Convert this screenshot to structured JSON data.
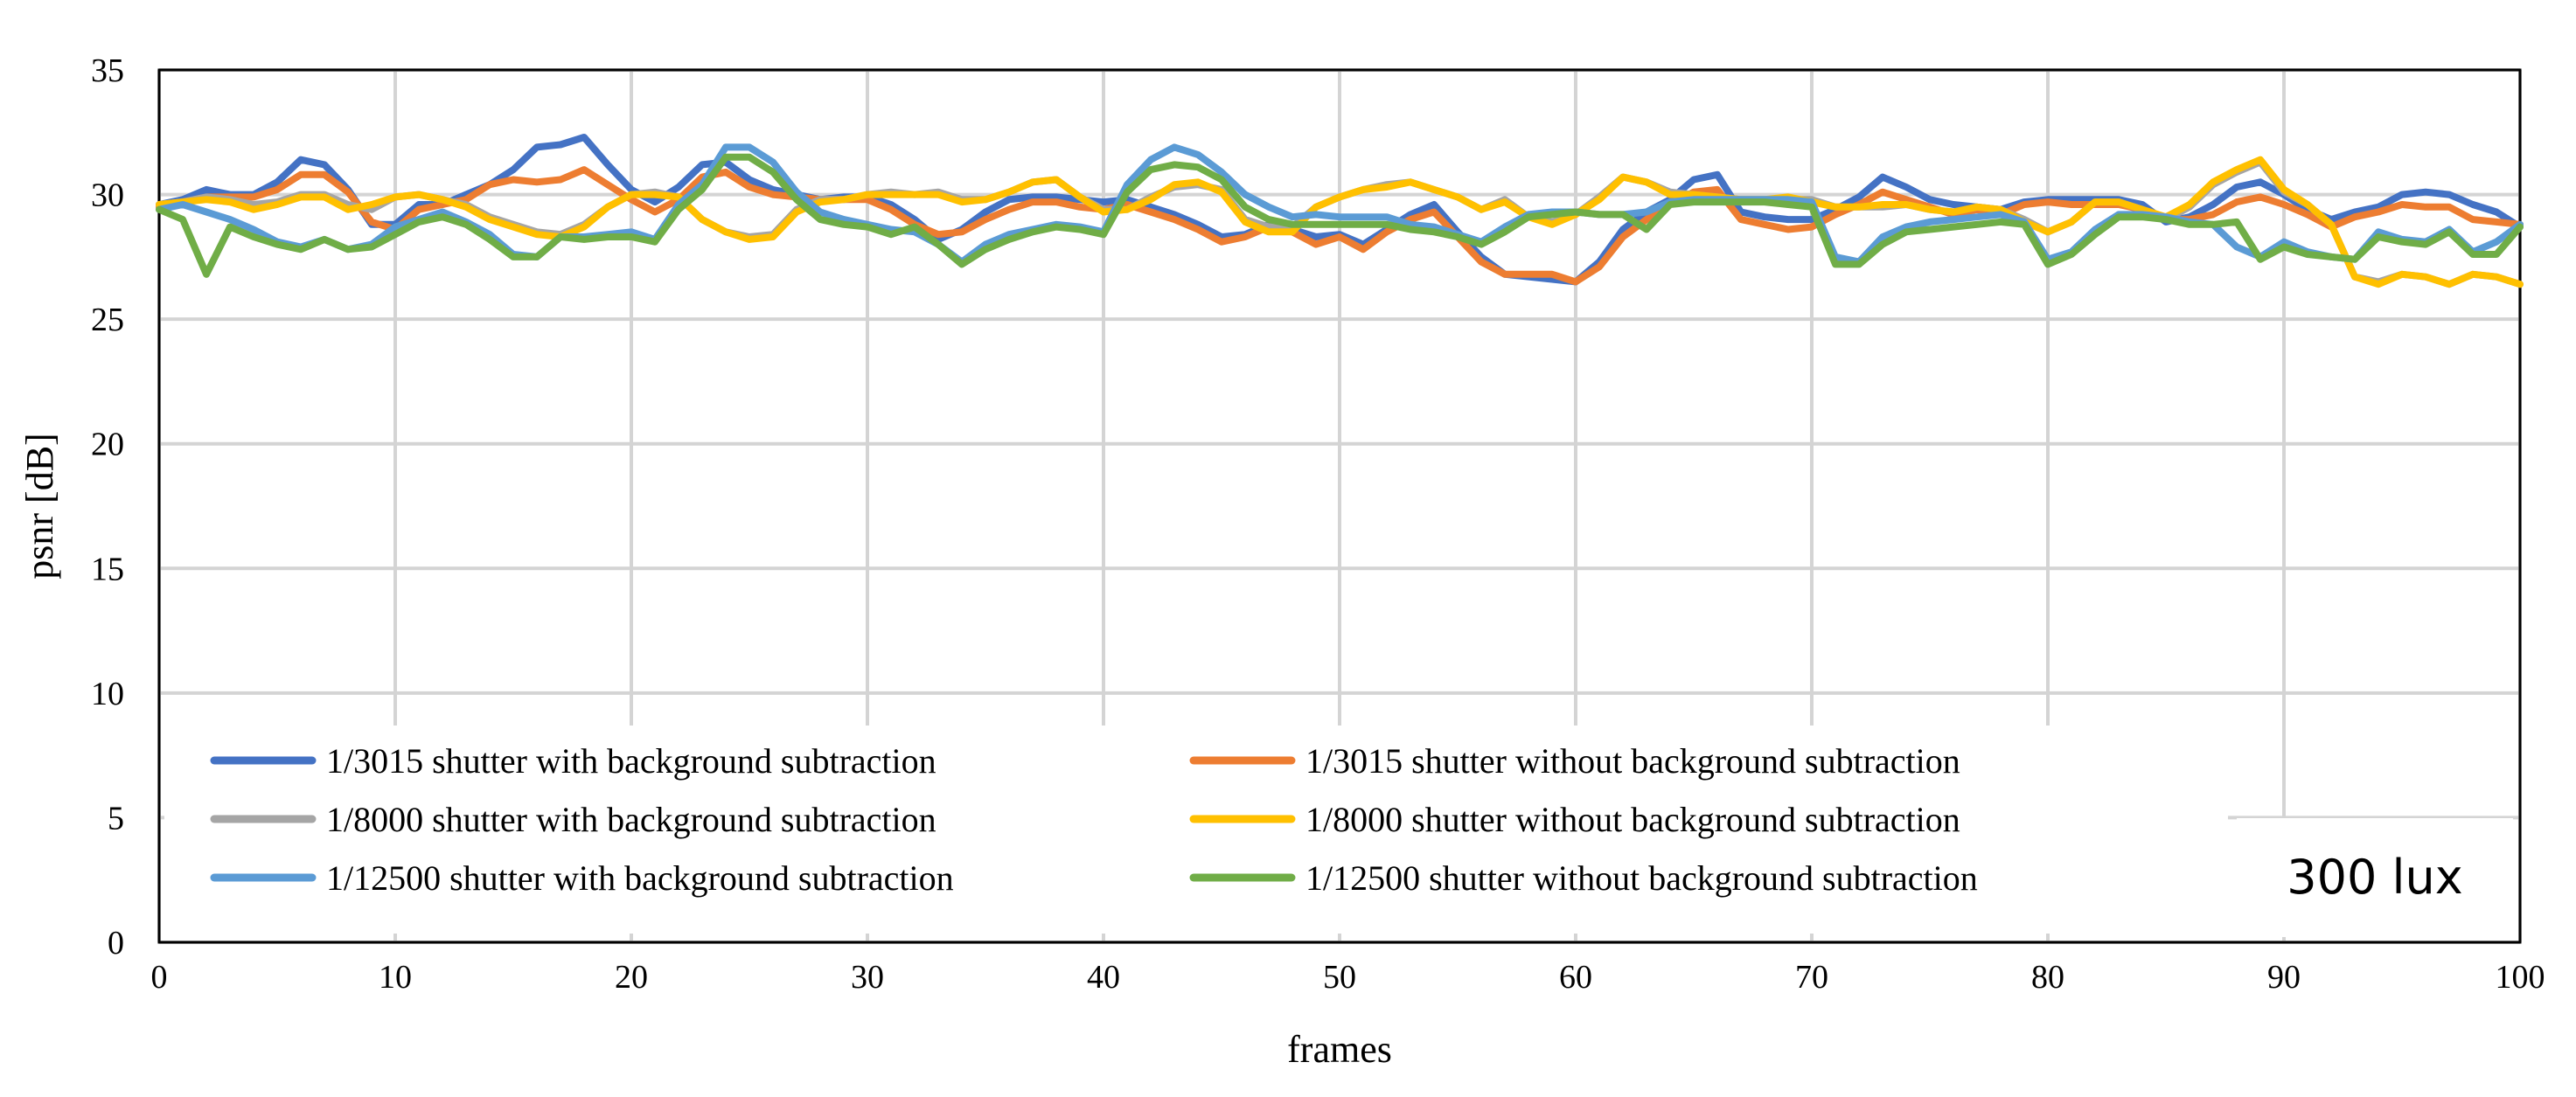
{
  "chart_data": {
    "type": "line",
    "title": "",
    "xlabel": "frames",
    "ylabel": "psnr [dB]",
    "xlim": [
      0,
      100
    ],
    "ylim": [
      0,
      35
    ],
    "xticks": [
      0,
      10,
      20,
      30,
      40,
      50,
      60,
      70,
      80,
      90,
      100
    ],
    "yticks": [
      0,
      5,
      10,
      15,
      20,
      25,
      30,
      35
    ],
    "grid": true,
    "legend_position": "lower-left",
    "annotation": "300 lux",
    "x_start": 0,
    "x_step": 1,
    "series": [
      {
        "name": "1/3015 shutter with background subtraction",
        "color": "#4472C4",
        "values": [
          29.6,
          29.8,
          30.2,
          30.0,
          30.0,
          30.5,
          31.4,
          31.2,
          30.2,
          28.8,
          28.8,
          29.6,
          29.6,
          30.0,
          30.4,
          31.0,
          31.9,
          32.0,
          32.3,
          31.2,
          30.2,
          29.7,
          30.3,
          31.2,
          31.3,
          30.6,
          30.2,
          30.0,
          29.8,
          29.9,
          29.9,
          29.6,
          29.0,
          28.2,
          28.6,
          29.3,
          29.8,
          29.9,
          29.9,
          29.8,
          29.7,
          29.8,
          29.5,
          29.2,
          28.8,
          28.3,
          28.4,
          28.8,
          28.6,
          28.3,
          28.4,
          28.0,
          28.6,
          29.2,
          29.6,
          28.5,
          27.5,
          26.8,
          26.7,
          26.6,
          26.5,
          27.3,
          28.6,
          29.3,
          29.8,
          30.6,
          30.8,
          29.3,
          29.1,
          29.0,
          29.0,
          29.4,
          29.9,
          30.7,
          30.3,
          29.8,
          29.6,
          29.5,
          29.4,
          29.7,
          29.8,
          29.8,
          29.8,
          29.8,
          29.6,
          28.9,
          29.1,
          29.6,
          30.3,
          30.5,
          30.0,
          29.4,
          29.0,
          29.3,
          29.5,
          30.0,
          30.1,
          30.0,
          29.6,
          29.3,
          28.7
        ]
      },
      {
        "name": "1/3015 shutter without background subtraction",
        "color": "#ED7D31",
        "values": [
          29.5,
          29.7,
          29.9,
          29.9,
          29.9,
          30.2,
          30.8,
          30.8,
          30.1,
          28.9,
          28.6,
          29.4,
          29.6,
          29.8,
          30.4,
          30.6,
          30.5,
          30.6,
          31.0,
          30.4,
          29.8,
          29.3,
          29.8,
          30.7,
          30.9,
          30.3,
          30.0,
          29.9,
          29.8,
          29.8,
          29.8,
          29.4,
          28.8,
          28.4,
          28.5,
          29.0,
          29.4,
          29.7,
          29.7,
          29.5,
          29.4,
          29.6,
          29.3,
          29.0,
          28.6,
          28.1,
          28.3,
          28.7,
          28.5,
          28.0,
          28.3,
          27.8,
          28.5,
          29.0,
          29.3,
          28.3,
          27.3,
          26.8,
          26.8,
          26.8,
          26.5,
          27.1,
          28.3,
          29.0,
          29.6,
          30.1,
          30.2,
          29.0,
          28.8,
          28.6,
          28.7,
          29.2,
          29.6,
          30.1,
          29.8,
          29.5,
          29.2,
          29.4,
          29.2,
          29.6,
          29.7,
          29.6,
          29.6,
          29.6,
          29.4,
          29.0,
          29.0,
          29.2,
          29.7,
          29.9,
          29.6,
          29.2,
          28.7,
          29.1,
          29.3,
          29.6,
          29.5,
          29.5,
          29.0,
          28.9,
          28.8
        ]
      },
      {
        "name": "1/8000 shutter with background subtraction",
        "color": "#A5A5A5",
        "values": [
          29.6,
          29.7,
          29.9,
          29.8,
          29.6,
          29.7,
          30.0,
          30.0,
          29.6,
          29.4,
          29.9,
          30.0,
          29.8,
          29.6,
          29.1,
          28.8,
          28.5,
          28.4,
          28.8,
          29.5,
          30.0,
          30.1,
          29.9,
          29.0,
          28.5,
          28.3,
          28.4,
          29.4,
          29.8,
          29.8,
          30.0,
          30.1,
          30.0,
          30.1,
          29.8,
          29.8,
          30.1,
          30.5,
          30.6,
          29.9,
          29.4,
          29.4,
          29.9,
          30.3,
          30.4,
          30.2,
          29.0,
          28.7,
          28.7,
          29.5,
          29.9,
          30.2,
          30.4,
          30.5,
          30.2,
          29.9,
          29.4,
          29.8,
          29.1,
          28.9,
          29.2,
          29.9,
          30.7,
          30.5,
          30.1,
          30.0,
          29.9,
          29.8,
          29.8,
          29.8,
          29.8,
          29.5,
          29.5,
          29.5,
          29.6,
          29.4,
          29.3,
          29.5,
          29.4,
          29.0,
          28.5,
          28.9,
          29.7,
          29.7,
          29.4,
          29.0,
          29.5,
          30.4,
          30.9,
          31.3,
          30.1,
          29.6,
          28.8,
          26.7,
          26.5,
          26.8,
          26.7,
          26.4,
          26.8,
          26.7,
          26.4
        ]
      },
      {
        "name": "1/8000 shutter without background subtraction",
        "color": "#FFC000",
        "values": [
          29.6,
          29.7,
          29.8,
          29.7,
          29.4,
          29.6,
          29.9,
          29.9,
          29.4,
          29.6,
          29.9,
          30.0,
          29.8,
          29.5,
          29.0,
          28.7,
          28.4,
          28.3,
          28.7,
          29.5,
          30.0,
          30.0,
          29.9,
          29.0,
          28.5,
          28.2,
          28.3,
          29.3,
          29.7,
          29.8,
          30.0,
          30.0,
          30.0,
          30.0,
          29.7,
          29.8,
          30.1,
          30.5,
          30.6,
          29.9,
          29.3,
          29.4,
          29.8,
          30.4,
          30.5,
          30.1,
          28.9,
          28.5,
          28.5,
          29.5,
          29.9,
          30.2,
          30.3,
          30.5,
          30.2,
          29.9,
          29.4,
          29.7,
          29.1,
          28.8,
          29.2,
          29.8,
          30.7,
          30.5,
          30.0,
          30.0,
          29.9,
          29.8,
          29.8,
          29.9,
          29.7,
          29.5,
          29.5,
          29.6,
          29.6,
          29.4,
          29.3,
          29.5,
          29.4,
          28.9,
          28.5,
          28.9,
          29.7,
          29.7,
          29.4,
          29.1,
          29.6,
          30.5,
          31.0,
          31.4,
          30.2,
          29.6,
          28.8,
          26.7,
          26.4,
          26.8,
          26.7,
          26.4,
          26.8,
          26.7,
          26.4
        ]
      },
      {
        "name": "1/12500 shutter with background subtraction",
        "color": "#5B9BD5",
        "values": [
          29.4,
          29.6,
          29.3,
          29.0,
          28.6,
          28.1,
          27.9,
          28.2,
          27.8,
          28.0,
          28.7,
          29.0,
          29.3,
          28.9,
          28.4,
          27.6,
          27.5,
          28.3,
          28.3,
          28.4,
          28.5,
          28.2,
          29.6,
          30.4,
          31.9,
          31.9,
          31.3,
          30.1,
          29.3,
          29.0,
          28.8,
          28.6,
          28.5,
          28.0,
          27.3,
          28.0,
          28.4,
          28.6,
          28.8,
          28.7,
          28.5,
          30.4,
          31.4,
          31.9,
          31.6,
          30.9,
          30.0,
          29.5,
          29.1,
          29.2,
          29.1,
          29.1,
          29.1,
          28.8,
          28.7,
          28.4,
          28.1,
          28.7,
          29.2,
          29.3,
          29.3,
          29.2,
          29.2,
          29.3,
          29.7,
          29.8,
          29.8,
          29.8,
          29.8,
          29.8,
          29.7,
          27.5,
          27.3,
          28.3,
          28.7,
          28.9,
          29.0,
          29.1,
          29.2,
          28.9,
          27.4,
          27.7,
          28.6,
          29.2,
          29.2,
          29.1,
          28.9,
          28.8,
          27.9,
          27.5,
          28.1,
          27.7,
          27.5,
          27.4,
          28.5,
          28.2,
          28.1,
          28.6,
          27.7,
          28.1,
          28.8
        ]
      },
      {
        "name": "1/12500 shutter without background subtraction",
        "color": "#70AD47",
        "values": [
          29.4,
          29.0,
          26.8,
          28.7,
          28.3,
          28.0,
          27.8,
          28.2,
          27.8,
          27.9,
          28.4,
          28.9,
          29.1,
          28.8,
          28.2,
          27.5,
          27.5,
          28.3,
          28.2,
          28.3,
          28.3,
          28.1,
          29.4,
          30.2,
          31.5,
          31.5,
          30.9,
          29.8,
          29.0,
          28.8,
          28.7,
          28.4,
          28.7,
          28.0,
          27.2,
          27.8,
          28.2,
          28.5,
          28.7,
          28.6,
          28.4,
          30.1,
          31.0,
          31.2,
          31.1,
          30.6,
          29.5,
          29.0,
          28.8,
          28.8,
          28.8,
          28.8,
          28.8,
          28.6,
          28.5,
          28.3,
          28.0,
          28.5,
          29.1,
          29.2,
          29.3,
          29.2,
          29.2,
          28.6,
          29.6,
          29.7,
          29.7,
          29.7,
          29.7,
          29.6,
          29.5,
          27.2,
          27.2,
          28.0,
          28.5,
          28.6,
          28.7,
          28.8,
          28.9,
          28.8,
          27.2,
          27.6,
          28.4,
          29.1,
          29.1,
          29.0,
          28.8,
          28.8,
          28.9,
          27.4,
          27.9,
          27.6,
          27.5,
          27.4,
          28.3,
          28.1,
          28.0,
          28.5,
          27.6,
          27.6,
          28.7
        ]
      }
    ]
  }
}
